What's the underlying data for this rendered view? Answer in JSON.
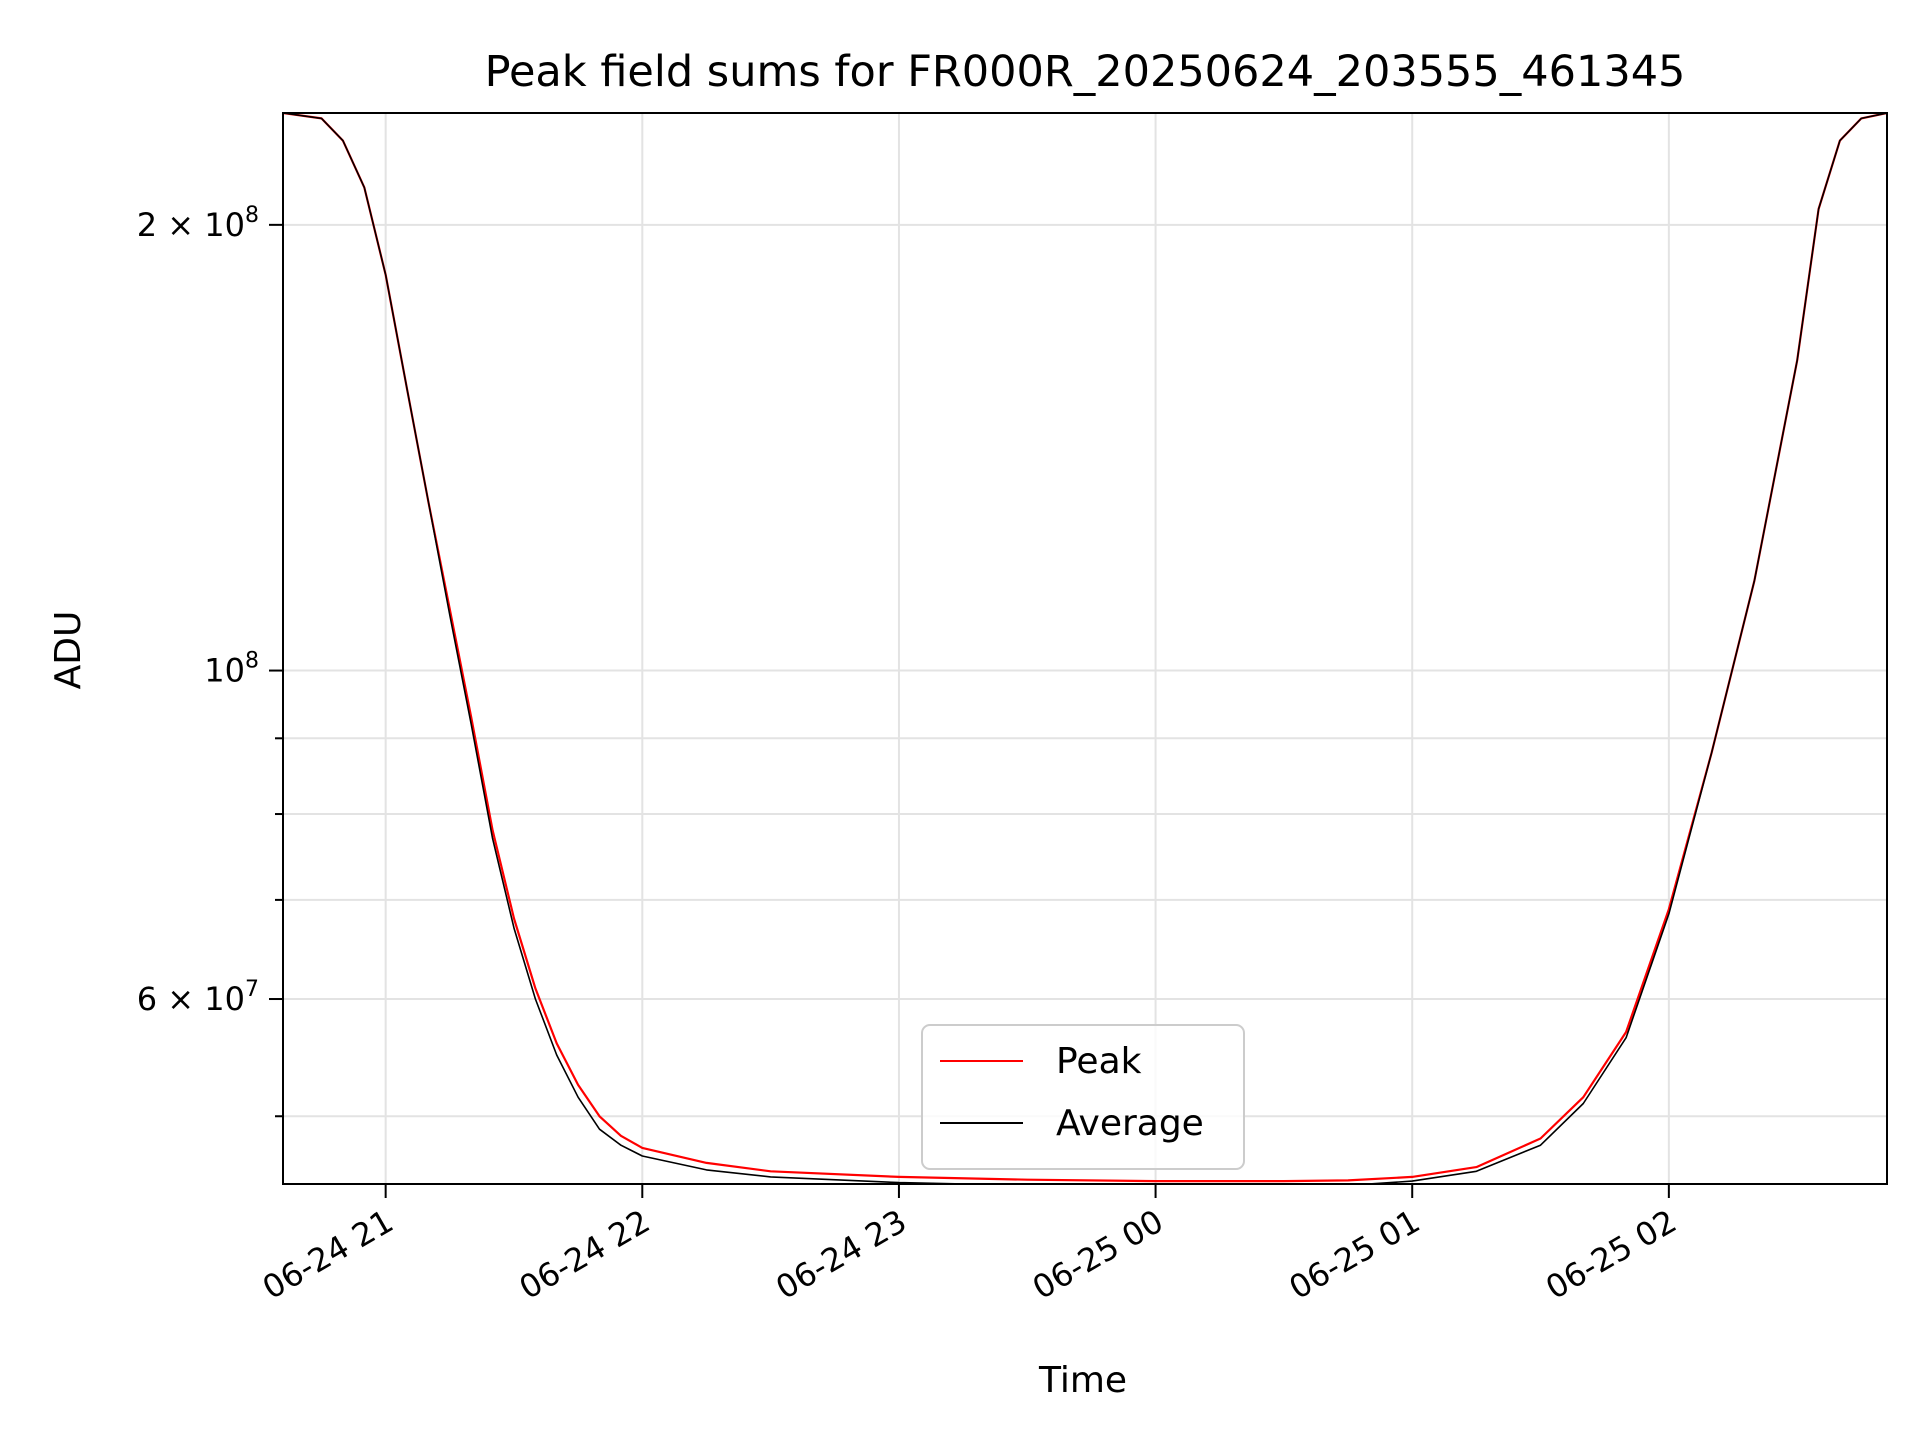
{
  "chart_data": {
    "type": "line",
    "title": "Peak field sums for FR000R_20250624_203555_461345",
    "xlabel": "Time",
    "ylabel": "ADU",
    "yscale": "log",
    "xlim": [
      "2025-06-24 20:36",
      "2025-06-25 02:51"
    ],
    "ylim": [
      45000000,
      238000000
    ],
    "grid": true,
    "legend": "lower-center",
    "x_ticks": [
      "06-24 21",
      "06-24 22",
      "06-24 23",
      "06-25 00",
      "06-25 01",
      "06-25 02"
    ],
    "y_tick_labels": [
      {
        "value": 200000000,
        "label": "2×10^8",
        "base": "2 × 10",
        "exp": "8"
      },
      {
        "value": 100000000,
        "label": "10^8",
        "base": "10",
        "exp": "8"
      },
      {
        "value": 60000000,
        "label": "6×10^7",
        "base": "6 × 10",
        "exp": "7"
      }
    ],
    "y_minor_ticks": [
      90000000,
      80000000,
      70000000,
      50000000
    ],
    "series": [
      {
        "name": "Peak",
        "color": "#ff0000",
        "x": [
          "2025-06-24 20:36",
          "2025-06-24 20:45",
          "2025-06-24 20:50",
          "2025-06-24 20:55",
          "2025-06-24 21:00",
          "2025-06-24 21:05",
          "2025-06-24 21:10",
          "2025-06-24 21:15",
          "2025-06-24 21:20",
          "2025-06-24 21:25",
          "2025-06-24 21:30",
          "2025-06-24 21:35",
          "2025-06-24 21:40",
          "2025-06-24 21:45",
          "2025-06-24 21:50",
          "2025-06-24 21:55",
          "2025-06-24 22:00",
          "2025-06-24 22:15",
          "2025-06-24 22:30",
          "2025-06-24 23:00",
          "2025-06-24 23:30",
          "2025-06-25 00:00",
          "2025-06-25 00:30",
          "2025-06-25 00:45",
          "2025-06-25 01:00",
          "2025-06-25 01:15",
          "2025-06-25 01:30",
          "2025-06-25 01:40",
          "2025-06-25 01:50",
          "2025-06-25 02:00",
          "2025-06-25 02:10",
          "2025-06-25 02:20",
          "2025-06-25 02:30",
          "2025-06-25 02:35",
          "2025-06-25 02:40",
          "2025-06-25 02:45",
          "2025-06-25 02:51"
        ],
        "values": [
          238000000,
          236000000,
          228000000,
          212000000,
          185000000,
          155000000,
          130000000,
          110000000,
          93000000,
          78000000,
          68000000,
          61000000,
          56000000,
          52500000,
          50000000,
          48500000,
          47600000,
          46500000,
          45900000,
          45500000,
          45300000,
          45200000,
          45200000,
          45250000,
          45500000,
          46200000,
          48300000,
          51500000,
          57000000,
          69000000,
          88000000,
          115000000,
          162000000,
          205000000,
          228000000,
          236000000,
          238000000
        ]
      },
      {
        "name": "Average",
        "color": "#000000",
        "x": [
          "2025-06-24 20:36",
          "2025-06-24 20:45",
          "2025-06-24 20:50",
          "2025-06-24 20:55",
          "2025-06-24 21:00",
          "2025-06-24 21:05",
          "2025-06-24 21:10",
          "2025-06-24 21:15",
          "2025-06-24 21:20",
          "2025-06-24 21:25",
          "2025-06-24 21:30",
          "2025-06-24 21:35",
          "2025-06-24 21:40",
          "2025-06-24 21:45",
          "2025-06-24 21:50",
          "2025-06-24 21:55",
          "2025-06-24 22:00",
          "2025-06-24 22:15",
          "2025-06-24 22:30",
          "2025-06-24 23:00",
          "2025-06-24 23:30",
          "2025-06-25 00:00",
          "2025-06-25 00:30",
          "2025-06-25 00:45",
          "2025-06-25 01:00",
          "2025-06-25 01:15",
          "2025-06-25 01:30",
          "2025-06-25 01:40",
          "2025-06-25 01:50",
          "2025-06-25 02:00",
          "2025-06-25 02:10",
          "2025-06-25 02:20",
          "2025-06-25 02:30",
          "2025-06-25 02:35",
          "2025-06-25 02:40",
          "2025-06-25 02:45",
          "2025-06-25 02:51"
        ],
        "values": [
          238000000,
          236000000,
          228000000,
          212000000,
          185000000,
          155000000,
          130000000,
          109000000,
          92000000,
          77000000,
          67000000,
          60000000,
          55000000,
          51500000,
          49000000,
          47800000,
          47000000,
          46000000,
          45500000,
          45100000,
          44900000,
          44800000,
          44800000,
          44900000,
          45200000,
          45900000,
          47800000,
          51000000,
          56500000,
          68500000,
          88000000,
          115000000,
          162000000,
          205000000,
          228000000,
          236000000,
          238000000
        ]
      }
    ]
  }
}
